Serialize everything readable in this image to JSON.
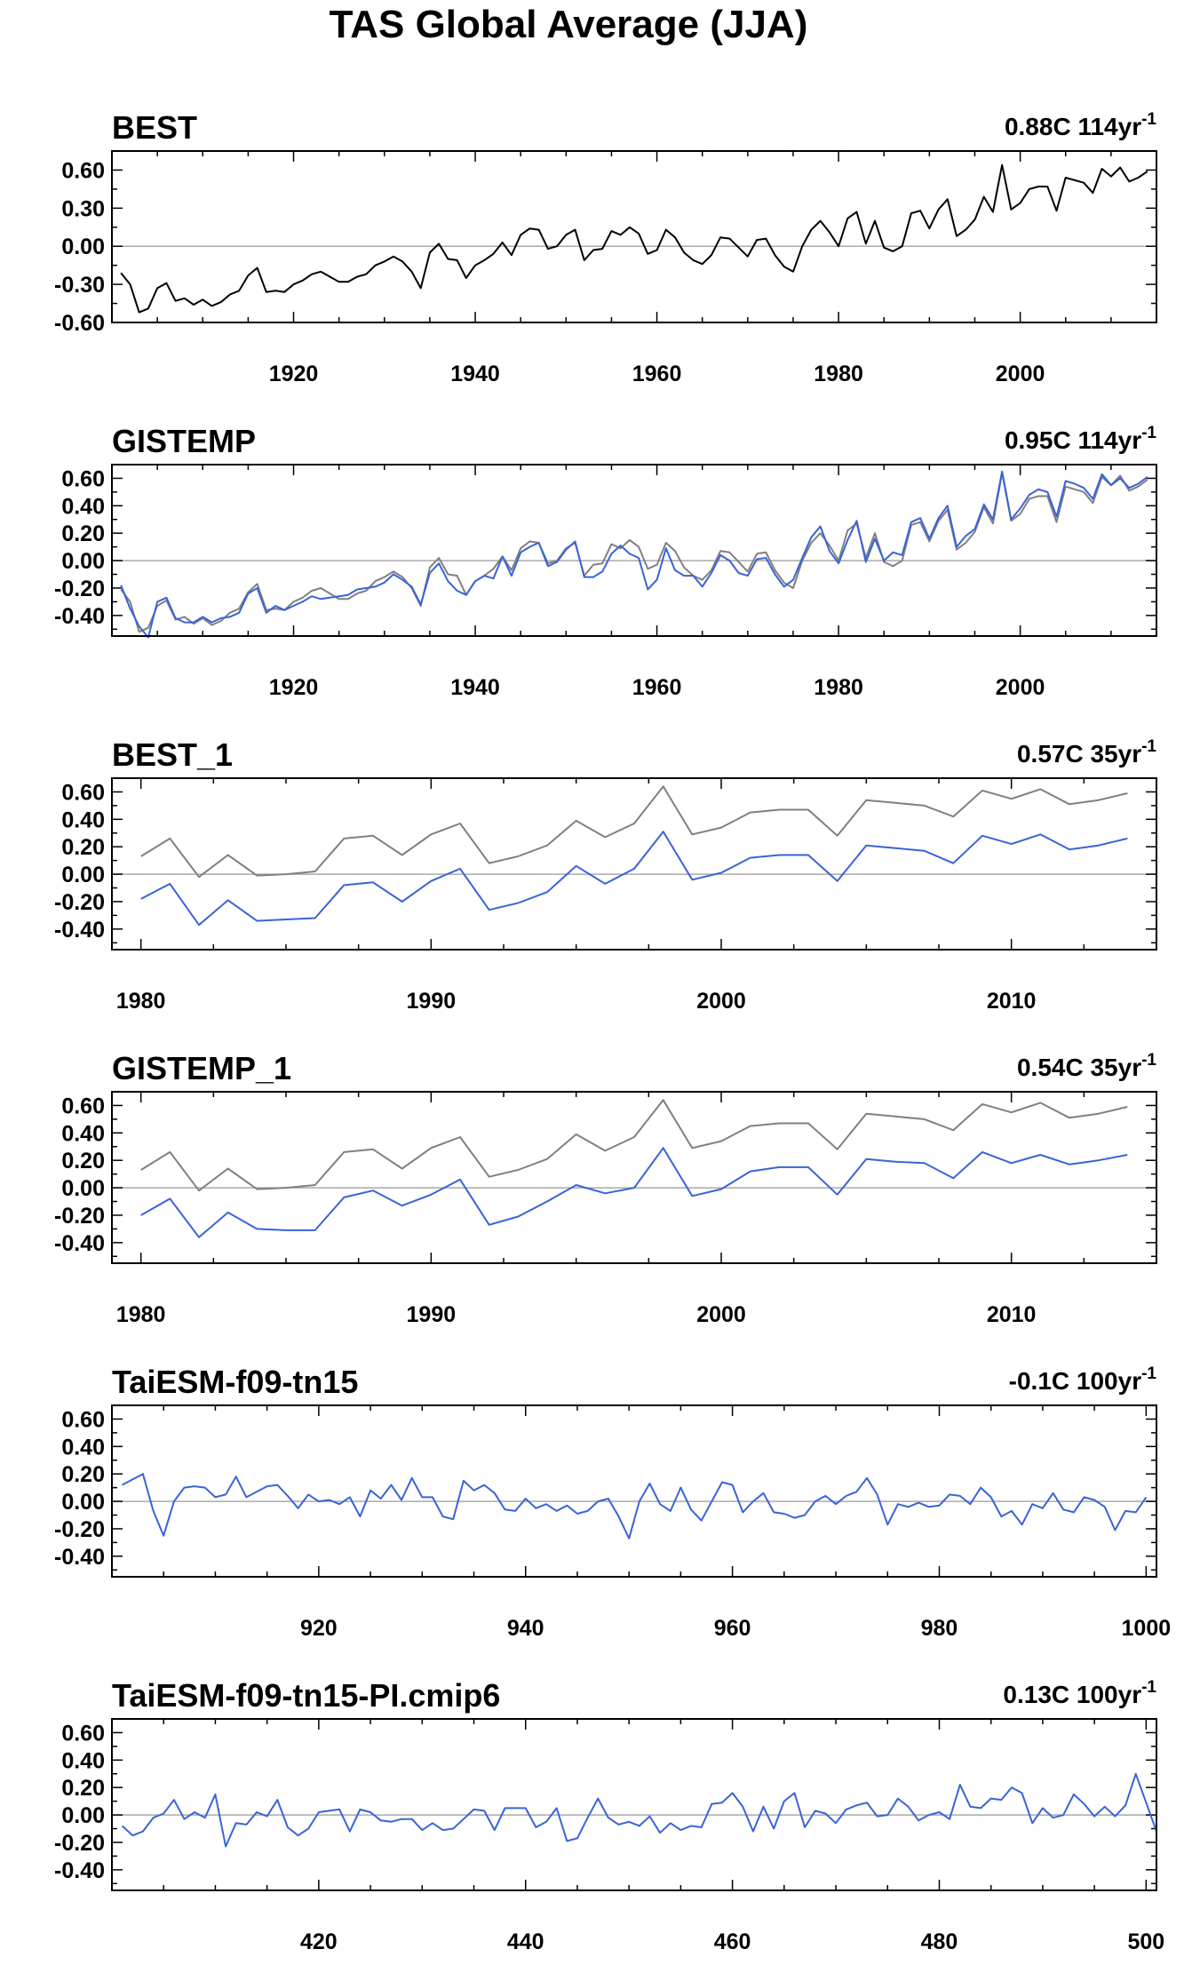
{
  "figure_title": "TAS Global Average (JJA)",
  "colors": {
    "observed": "#000000",
    "reference": "#808080",
    "model": "#3a63d8",
    "zero_line": "#aaaaaa",
    "frame": "#000000"
  },
  "chart_data": [
    {
      "type": "line",
      "title": "BEST",
      "trend_value": "0.88C 114yr",
      "trend_exp": "-1",
      "xlim": [
        1900,
        2015
      ],
      "ylim": [
        -0.6,
        0.75
      ],
      "yticks": [
        -0.6,
        -0.3,
        0.0,
        0.3,
        0.6
      ],
      "ytick_labels": [
        "-0.60",
        "-0.30",
        "0.00",
        "0.30",
        "0.60"
      ],
      "xticks": [
        1920,
        1940,
        1960,
        1980,
        2000
      ],
      "xtick_labels": [
        "1920",
        "1940",
        "1960",
        "1980",
        "2000"
      ],
      "x_start": 1901,
      "series": [
        {
          "role": "observed",
          "values": [
            -0.21,
            -0.3,
            -0.52,
            -0.49,
            -0.33,
            -0.29,
            -0.43,
            -0.41,
            -0.46,
            -0.42,
            -0.47,
            -0.44,
            -0.38,
            -0.35,
            -0.23,
            -0.17,
            -0.36,
            -0.35,
            -0.36,
            -0.3,
            -0.27,
            -0.22,
            -0.2,
            -0.24,
            -0.28,
            -0.28,
            -0.24,
            -0.22,
            -0.15,
            -0.12,
            -0.08,
            -0.12,
            -0.2,
            -0.33,
            -0.05,
            0.02,
            -0.1,
            -0.11,
            -0.25,
            -0.15,
            -0.11,
            -0.06,
            0.03,
            -0.07,
            0.09,
            0.14,
            0.13,
            -0.02,
            0.0,
            0.09,
            0.13,
            -0.11,
            -0.03,
            -0.02,
            0.12,
            0.09,
            0.15,
            0.1,
            -0.06,
            -0.03,
            0.13,
            0.07,
            -0.05,
            -0.11,
            -0.14,
            -0.07,
            0.07,
            0.06,
            -0.01,
            -0.08,
            0.05,
            0.06,
            -0.07,
            -0.16,
            -0.2,
            0.0,
            0.13,
            0.2,
            0.11,
            0.0,
            0.22,
            0.27,
            0.02,
            0.2,
            -0.01,
            -0.04,
            0.0,
            0.26,
            0.28,
            0.14,
            0.29,
            0.37,
            0.08,
            0.13,
            0.21,
            0.39,
            0.27,
            0.64,
            0.29,
            0.34,
            0.45,
            0.47,
            0.47,
            0.28,
            0.54,
            0.52,
            0.5,
            0.42,
            0.61,
            0.55,
            0.62,
            0.51,
            0.54,
            0.59
          ]
        }
      ]
    },
    {
      "type": "line",
      "title": "GISTEMP",
      "trend_value": "0.95C 114yr",
      "trend_exp": "-1",
      "xlim": [
        1900,
        2015
      ],
      "ylim": [
        -0.55,
        0.7
      ],
      "yticks": [
        -0.4,
        -0.2,
        0.0,
        0.2,
        0.4,
        0.6
      ],
      "ytick_labels": [
        "-0.40",
        "-0.20",
        "0.00",
        "0.20",
        "0.40",
        "0.60"
      ],
      "xticks": [
        1920,
        1940,
        1960,
        1980,
        2000
      ],
      "xtick_labels": [
        "1920",
        "1940",
        "1960",
        "1980",
        "2000"
      ],
      "x_start": 1901,
      "series": [
        {
          "role": "reference",
          "values": [
            -0.21,
            -0.3,
            -0.52,
            -0.49,
            -0.33,
            -0.29,
            -0.43,
            -0.41,
            -0.46,
            -0.42,
            -0.47,
            -0.44,
            -0.38,
            -0.35,
            -0.23,
            -0.17,
            -0.36,
            -0.35,
            -0.36,
            -0.3,
            -0.27,
            -0.22,
            -0.2,
            -0.24,
            -0.28,
            -0.28,
            -0.24,
            -0.22,
            -0.15,
            -0.12,
            -0.08,
            -0.12,
            -0.2,
            -0.33,
            -0.05,
            0.02,
            -0.1,
            -0.11,
            -0.25,
            -0.15,
            -0.11,
            -0.06,
            0.03,
            -0.07,
            0.09,
            0.14,
            0.13,
            -0.02,
            0.0,
            0.09,
            0.13,
            -0.11,
            -0.03,
            -0.02,
            0.12,
            0.09,
            0.15,
            0.1,
            -0.06,
            -0.03,
            0.13,
            0.07,
            -0.05,
            -0.11,
            -0.14,
            -0.07,
            0.07,
            0.06,
            -0.01,
            -0.08,
            0.05,
            0.06,
            -0.07,
            -0.16,
            -0.2,
            0.0,
            0.13,
            0.2,
            0.11,
            0.0,
            0.22,
            0.27,
            0.02,
            0.2,
            -0.01,
            -0.04,
            0.0,
            0.26,
            0.28,
            0.14,
            0.29,
            0.37,
            0.08,
            0.13,
            0.21,
            0.39,
            0.27,
            0.64,
            0.29,
            0.34,
            0.45,
            0.47,
            0.47,
            0.28,
            0.54,
            0.52,
            0.5,
            0.42,
            0.61,
            0.55,
            0.62,
            0.51,
            0.54,
            0.59
          ]
        },
        {
          "role": "model",
          "values": [
            -0.18,
            -0.35,
            -0.48,
            -0.56,
            -0.3,
            -0.27,
            -0.42,
            -0.45,
            -0.45,
            -0.41,
            -0.45,
            -0.42,
            -0.41,
            -0.38,
            -0.24,
            -0.2,
            -0.38,
            -0.33,
            -0.36,
            -0.33,
            -0.3,
            -0.26,
            -0.28,
            -0.27,
            -0.26,
            -0.25,
            -0.21,
            -0.2,
            -0.19,
            -0.16,
            -0.1,
            -0.14,
            -0.19,
            -0.32,
            -0.09,
            -0.02,
            -0.15,
            -0.22,
            -0.25,
            -0.15,
            -0.11,
            -0.13,
            0.03,
            -0.11,
            0.06,
            0.1,
            0.13,
            -0.04,
            -0.01,
            0.08,
            0.14,
            -0.12,
            -0.12,
            -0.08,
            0.05,
            0.11,
            0.05,
            0.02,
            -0.21,
            -0.14,
            0.09,
            -0.07,
            -0.11,
            -0.11,
            -0.19,
            -0.09,
            0.04,
            0.0,
            -0.09,
            -0.11,
            0.01,
            0.02,
            -0.1,
            -0.19,
            -0.14,
            0.02,
            0.17,
            0.25,
            0.07,
            -0.02,
            0.15,
            0.29,
            -0.01,
            0.16,
            0.0,
            0.06,
            0.04,
            0.28,
            0.31,
            0.16,
            0.31,
            0.4,
            0.1,
            0.18,
            0.23,
            0.41,
            0.3,
            0.65,
            0.3,
            0.38,
            0.48,
            0.52,
            0.5,
            0.32,
            0.58,
            0.56,
            0.53,
            0.45,
            0.63,
            0.55,
            0.6,
            0.53,
            0.56,
            0.61
          ]
        }
      ]
    },
    {
      "type": "line",
      "title": "BEST_1",
      "trend_value": "0.57C 35yr",
      "trend_exp": "-1",
      "xlim": [
        1979,
        2015
      ],
      "ylim": [
        -0.55,
        0.7
      ],
      "yticks": [
        -0.4,
        -0.2,
        0.0,
        0.2,
        0.4,
        0.6
      ],
      "ytick_labels": [
        "-0.40",
        "-0.20",
        "0.00",
        "0.20",
        "0.40",
        "0.60"
      ],
      "xticks": [
        1980,
        1990,
        2000,
        2010
      ],
      "xtick_labels": [
        "1980",
        "1990",
        "2000",
        "2010"
      ],
      "x_start": 1980,
      "series": [
        {
          "role": "reference",
          "values": [
            0.13,
            0.26,
            -0.02,
            0.14,
            -0.01,
            0.0,
            0.02,
            0.26,
            0.28,
            0.14,
            0.29,
            0.37,
            0.08,
            0.13,
            0.21,
            0.39,
            0.27,
            0.37,
            0.64,
            0.29,
            0.34,
            0.45,
            0.47,
            0.47,
            0.28,
            0.54,
            0.52,
            0.5,
            0.42,
            0.61,
            0.55,
            0.62,
            0.51,
            0.54,
            0.59
          ]
        },
        {
          "role": "model",
          "values": [
            -0.18,
            -0.07,
            -0.37,
            -0.19,
            -0.34,
            -0.33,
            -0.32,
            -0.08,
            -0.06,
            -0.2,
            -0.05,
            0.04,
            -0.26,
            -0.21,
            -0.13,
            0.06,
            -0.07,
            0.04,
            0.31,
            -0.04,
            0.01,
            0.12,
            0.14,
            0.14,
            -0.05,
            0.21,
            0.19,
            0.17,
            0.08,
            0.28,
            0.22,
            0.29,
            0.18,
            0.21,
            0.26
          ]
        }
      ]
    },
    {
      "type": "line",
      "title": "GISTEMP_1",
      "trend_value": "0.54C 35yr",
      "trend_exp": "-1",
      "xlim": [
        1979,
        2015
      ],
      "ylim": [
        -0.55,
        0.7
      ],
      "yticks": [
        -0.4,
        -0.2,
        0.0,
        0.2,
        0.4,
        0.6
      ],
      "ytick_labels": [
        "-0.40",
        "-0.20",
        "0.00",
        "0.20",
        "0.40",
        "0.60"
      ],
      "xticks": [
        1980,
        1990,
        2000,
        2010
      ],
      "xtick_labels": [
        "1980",
        "1990",
        "2000",
        "2010"
      ],
      "x_start": 1980,
      "series": [
        {
          "role": "reference",
          "values": [
            0.13,
            0.26,
            -0.02,
            0.14,
            -0.01,
            0.0,
            0.02,
            0.26,
            0.28,
            0.14,
            0.29,
            0.37,
            0.08,
            0.13,
            0.21,
            0.39,
            0.27,
            0.37,
            0.64,
            0.29,
            0.34,
            0.45,
            0.47,
            0.47,
            0.28,
            0.54,
            0.52,
            0.5,
            0.42,
            0.61,
            0.55,
            0.62,
            0.51,
            0.54,
            0.59
          ]
        },
        {
          "role": "model",
          "values": [
            -0.2,
            -0.08,
            -0.36,
            -0.18,
            -0.3,
            -0.31,
            -0.31,
            -0.07,
            -0.02,
            -0.13,
            -0.05,
            0.06,
            -0.27,
            -0.21,
            -0.1,
            0.02,
            -0.04,
            0.0,
            0.29,
            -0.06,
            -0.01,
            0.12,
            0.15,
            0.15,
            -0.05,
            0.21,
            0.19,
            0.18,
            0.07,
            0.26,
            0.18,
            0.24,
            0.17,
            0.2,
            0.24
          ]
        }
      ]
    },
    {
      "type": "line",
      "title": "TaiESM-f09-tn15",
      "trend_value": "-0.1C 100yr",
      "trend_exp": "-1",
      "xlim": [
        900,
        1001
      ],
      "ylim": [
        -0.55,
        0.7
      ],
      "yticks": [
        -0.4,
        -0.2,
        0.0,
        0.2,
        0.4,
        0.6
      ],
      "ytick_labels": [
        "-0.40",
        "-0.20",
        "0.00",
        "0.20",
        "0.40",
        "0.60"
      ],
      "xticks": [
        920,
        940,
        960,
        980,
        1000
      ],
      "xtick_labels": [
        "920",
        "940",
        "960",
        "980",
        "1000"
      ],
      "x_start": 901,
      "series": [
        {
          "role": "model",
          "values": [
            0.12,
            0.16,
            0.2,
            -0.07,
            -0.25,
            0.0,
            0.1,
            0.11,
            0.1,
            0.03,
            0.05,
            0.18,
            0.03,
            0.07,
            0.11,
            0.12,
            0.04,
            -0.05,
            0.05,
            0.0,
            0.01,
            -0.02,
            0.03,
            -0.11,
            0.08,
            0.02,
            0.12,
            0.01,
            0.17,
            0.03,
            0.03,
            -0.11,
            -0.13,
            0.15,
            0.08,
            0.12,
            0.06,
            -0.06,
            -0.07,
            0.02,
            -0.05,
            -0.02,
            -0.07,
            -0.03,
            -0.09,
            -0.07,
            0.0,
            0.02,
            -0.11,
            -0.27,
            0.0,
            0.13,
            -0.02,
            -0.07,
            0.1,
            -0.06,
            -0.14,
            0.0,
            0.14,
            0.12,
            -0.08,
            0.0,
            0.06,
            -0.08,
            -0.09,
            -0.12,
            -0.1,
            0.0,
            0.04,
            -0.02,
            0.04,
            0.07,
            0.17,
            0.05,
            -0.17,
            -0.02,
            -0.04,
            -0.01,
            -0.04,
            -0.03,
            0.05,
            0.04,
            -0.02,
            0.1,
            0.03,
            -0.11,
            -0.07,
            -0.17,
            -0.02,
            -0.05,
            0.06,
            -0.06,
            -0.08,
            0.03,
            0.01,
            -0.04,
            -0.21,
            -0.07,
            -0.08,
            0.03
          ]
        }
      ]
    },
    {
      "type": "line",
      "title": "TaiESM-f09-tn15-PI.cmip6",
      "trend_value": "0.13C 100yr",
      "trend_exp": "-1",
      "xlim": [
        400,
        501
      ],
      "ylim": [
        -0.55,
        0.7
      ],
      "yticks": [
        -0.4,
        -0.2,
        0.0,
        0.2,
        0.4,
        0.6
      ],
      "ytick_labels": [
        "-0.40",
        "-0.20",
        "0.00",
        "0.20",
        "0.40",
        "0.60"
      ],
      "xticks": [
        420,
        440,
        460,
        480,
        500
      ],
      "xtick_labels": [
        "420",
        "440",
        "460",
        "480",
        "500"
      ],
      "x_start": 401,
      "series": [
        {
          "role": "model",
          "values": [
            -0.08,
            -0.15,
            -0.12,
            -0.02,
            0.01,
            0.11,
            -0.03,
            0.02,
            -0.02,
            0.15,
            -0.23,
            -0.06,
            -0.07,
            0.02,
            -0.01,
            0.11,
            -0.09,
            -0.15,
            -0.1,
            0.02,
            0.03,
            0.04,
            -0.12,
            0.04,
            0.02,
            -0.04,
            -0.05,
            -0.03,
            -0.03,
            -0.11,
            -0.06,
            -0.11,
            -0.1,
            -0.03,
            0.04,
            0.03,
            -0.11,
            0.05,
            0.05,
            0.05,
            -0.09,
            -0.05,
            0.05,
            -0.19,
            -0.17,
            -0.02,
            0.12,
            -0.02,
            -0.07,
            -0.05,
            -0.08,
            -0.01,
            -0.13,
            -0.06,
            -0.11,
            -0.08,
            -0.09,
            0.08,
            0.09,
            0.16,
            0.06,
            -0.12,
            0.06,
            -0.1,
            0.1,
            0.16,
            -0.09,
            0.03,
            0.01,
            -0.06,
            0.04,
            0.07,
            0.09,
            -0.01,
            0.0,
            0.12,
            0.06,
            -0.04,
            0.0,
            0.02,
            -0.03,
            0.22,
            0.06,
            0.05,
            0.12,
            0.11,
            0.2,
            0.16,
            -0.06,
            0.05,
            -0.02,
            0.0,
            0.15,
            0.08,
            -0.01,
            0.06,
            -0.01,
            0.07,
            0.3,
            0.09,
            -0.12
          ]
        }
      ]
    }
  ]
}
